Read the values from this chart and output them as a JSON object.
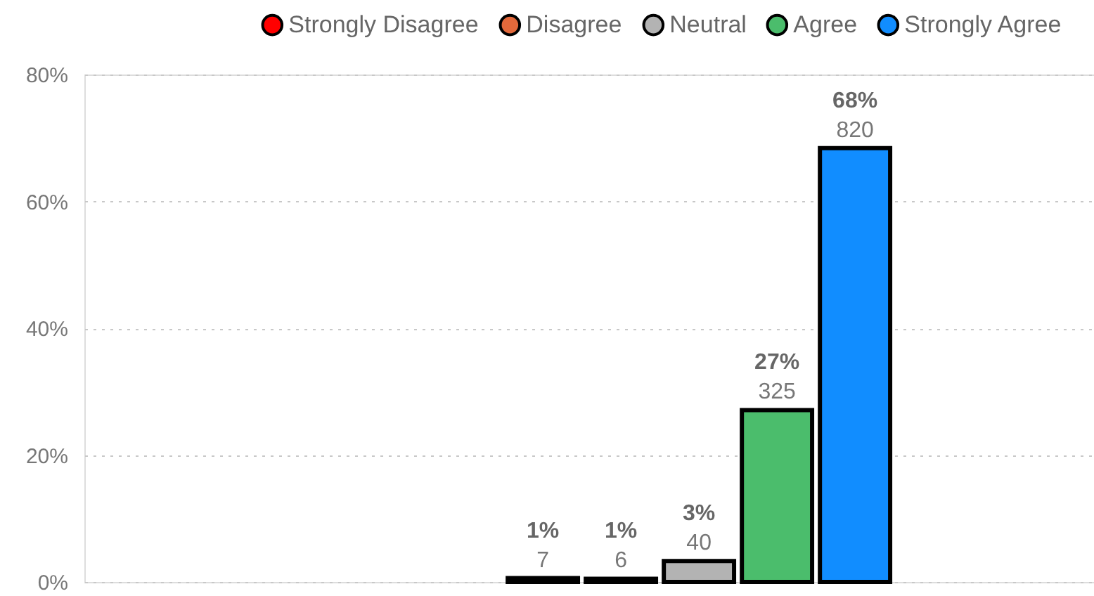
{
  "chart_data": {
    "type": "bar",
    "categories": [
      null
    ],
    "series": [
      {
        "name": "Strongly Disagree",
        "color": "#ff0000",
        "values": [
          0.6
        ],
        "value_labels": [
          "1%\n7"
        ]
      },
      {
        "name": "Disagree",
        "color": "#e3693b",
        "values": [
          0.5
        ],
        "value_labels": [
          "1%\n6"
        ]
      },
      {
        "name": "Neutral",
        "color": "#b3b3b3",
        "values": [
          3.3
        ],
        "value_labels": [
          "3%\n40"
        ]
      },
      {
        "name": "Agree",
        "color": "#4bbd6c",
        "values": [
          27.1
        ],
        "value_labels": [
          "27%\n325"
        ]
      },
      {
        "name": "Strongly Agree",
        "color": "#118dff",
        "values": [
          68.4
        ],
        "value_labels": [
          "68%\n820"
        ]
      }
    ],
    "ylim": [
      0,
      80
    ],
    "yticks": [
      {
        "value": 0,
        "label": "0%"
      },
      {
        "value": 20,
        "label": "20%"
      },
      {
        "value": 40,
        "label": "40%"
      },
      {
        "value": 60,
        "label": "60%"
      },
      {
        "value": 80,
        "label": "80%"
      }
    ],
    "grid": "y",
    "legend": "top right"
  }
}
